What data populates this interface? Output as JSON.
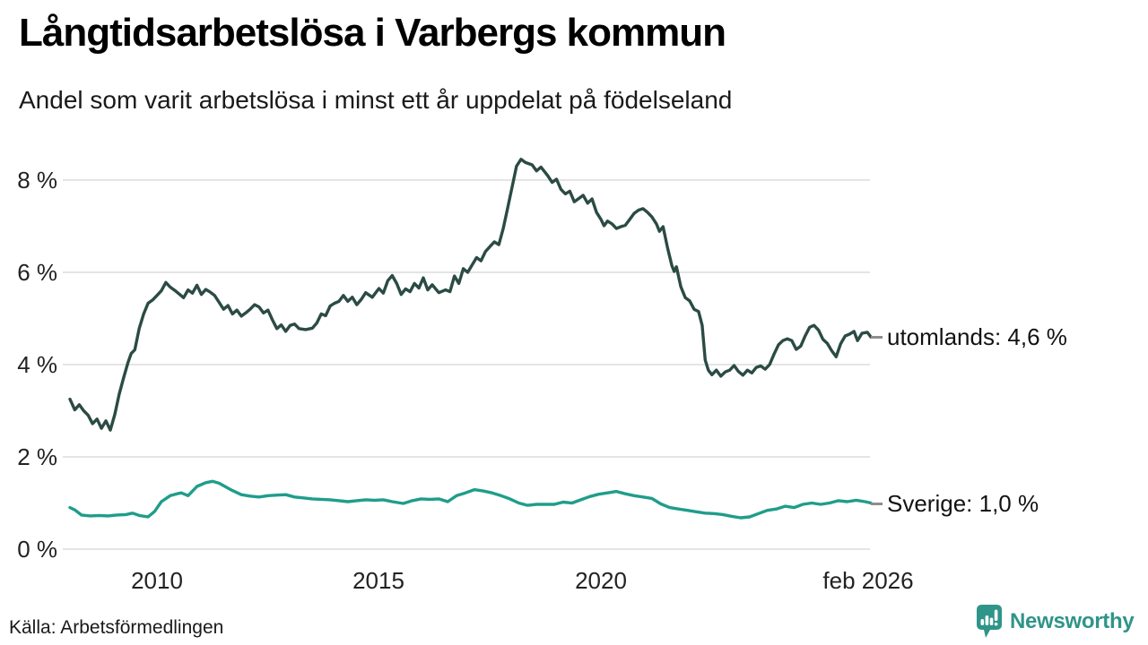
{
  "header": {
    "title": "Långtidsarbetslösa i Varbergs kommun",
    "subtitle": "Andel som varit arbetslösa i minst ett år uppdelat på födelseland"
  },
  "footer": {
    "source": "Källa: Arbetsförmedlingen",
    "brand": "Newsworthy"
  },
  "colors": {
    "series_utomlands": "#2b4b44",
    "series_sverige": "#1f9d8b",
    "grid": "#dcdcdc",
    "leader_dash": "#8d8d8d",
    "brand_teal": "#2f9489",
    "text": "#1a1a1a"
  },
  "chart_data": {
    "type": "line",
    "title": "Långtidsarbetslösa i Varbergs kommun",
    "subtitle": "Andel som varit arbetslösa i minst ett år uppdelat på födelseland",
    "source": "Källa: Arbetsförmedlingen",
    "grid": true,
    "legend_position": "end-of-line-labels",
    "xlim": [
      2008.0,
      2026.2
    ],
    "ylim": [
      0,
      8.7
    ],
    "y_ticks": [
      {
        "label": "8 %",
        "value": 8
      },
      {
        "label": "6 %",
        "value": 6
      },
      {
        "label": "4 %",
        "value": 4
      },
      {
        "label": "2 %",
        "value": 2
      },
      {
        "label": "0 %",
        "value": 0
      }
    ],
    "x_ticks": [
      {
        "label": "2010",
        "year": 2010
      },
      {
        "label": "2015",
        "year": 2015
      },
      {
        "label": "2020",
        "year": 2020
      },
      {
        "label": "feb 2026",
        "year": 2026.1
      }
    ],
    "series": [
      {
        "name": "utomlands",
        "end_label": "utomlands: 4,6 %",
        "end_value": "4,6 %",
        "color": "#2b4b44",
        "points": [
          [
            2008.04,
            3.25
          ],
          [
            2008.15,
            3.02
          ],
          [
            2008.25,
            3.13
          ],
          [
            2008.35,
            3.0
          ],
          [
            2008.45,
            2.9
          ],
          [
            2008.55,
            2.72
          ],
          [
            2008.65,
            2.82
          ],
          [
            2008.75,
            2.62
          ],
          [
            2008.85,
            2.78
          ],
          [
            2008.95,
            2.58
          ],
          [
            2009.05,
            2.92
          ],
          [
            2009.15,
            3.36
          ],
          [
            2009.25,
            3.72
          ],
          [
            2009.35,
            4.05
          ],
          [
            2009.42,
            4.24
          ],
          [
            2009.5,
            4.32
          ],
          [
            2009.6,
            4.78
          ],
          [
            2009.7,
            5.1
          ],
          [
            2009.8,
            5.33
          ],
          [
            2009.9,
            5.4
          ],
          [
            2010.0,
            5.5
          ],
          [
            2010.1,
            5.6
          ],
          [
            2010.2,
            5.78
          ],
          [
            2010.3,
            5.68
          ],
          [
            2010.4,
            5.61
          ],
          [
            2010.5,
            5.53
          ],
          [
            2010.6,
            5.45
          ],
          [
            2010.7,
            5.62
          ],
          [
            2010.8,
            5.55
          ],
          [
            2010.9,
            5.72
          ],
          [
            2011.0,
            5.52
          ],
          [
            2011.1,
            5.63
          ],
          [
            2011.2,
            5.57
          ],
          [
            2011.3,
            5.5
          ],
          [
            2011.4,
            5.35
          ],
          [
            2011.5,
            5.2
          ],
          [
            2011.6,
            5.28
          ],
          [
            2011.7,
            5.1
          ],
          [
            2011.8,
            5.18
          ],
          [
            2011.9,
            5.05
          ],
          [
            2012.0,
            5.12
          ],
          [
            2012.1,
            5.2
          ],
          [
            2012.2,
            5.3
          ],
          [
            2012.3,
            5.25
          ],
          [
            2012.4,
            5.12
          ],
          [
            2012.5,
            5.18
          ],
          [
            2012.6,
            4.97
          ],
          [
            2012.7,
            4.78
          ],
          [
            2012.8,
            4.86
          ],
          [
            2012.9,
            4.72
          ],
          [
            2013.0,
            4.85
          ],
          [
            2013.1,
            4.88
          ],
          [
            2013.2,
            4.78
          ],
          [
            2013.35,
            4.76
          ],
          [
            2013.5,
            4.79
          ],
          [
            2013.6,
            4.9
          ],
          [
            2013.7,
            5.1
          ],
          [
            2013.8,
            5.06
          ],
          [
            2013.9,
            5.27
          ],
          [
            2014.0,
            5.33
          ],
          [
            2014.1,
            5.37
          ],
          [
            2014.2,
            5.5
          ],
          [
            2014.3,
            5.37
          ],
          [
            2014.4,
            5.46
          ],
          [
            2014.5,
            5.3
          ],
          [
            2014.6,
            5.41
          ],
          [
            2014.7,
            5.56
          ],
          [
            2014.85,
            5.46
          ],
          [
            2015.0,
            5.65
          ],
          [
            2015.1,
            5.55
          ],
          [
            2015.2,
            5.82
          ],
          [
            2015.3,
            5.93
          ],
          [
            2015.4,
            5.76
          ],
          [
            2015.5,
            5.52
          ],
          [
            2015.6,
            5.64
          ],
          [
            2015.7,
            5.58
          ],
          [
            2015.8,
            5.76
          ],
          [
            2015.9,
            5.66
          ],
          [
            2016.0,
            5.88
          ],
          [
            2016.1,
            5.62
          ],
          [
            2016.2,
            5.73
          ],
          [
            2016.35,
            5.56
          ],
          [
            2016.5,
            5.62
          ],
          [
            2016.6,
            5.58
          ],
          [
            2016.7,
            5.92
          ],
          [
            2016.8,
            5.76
          ],
          [
            2016.9,
            6.08
          ],
          [
            2017.0,
            6.0
          ],
          [
            2017.1,
            6.16
          ],
          [
            2017.2,
            6.32
          ],
          [
            2017.3,
            6.25
          ],
          [
            2017.4,
            6.45
          ],
          [
            2017.5,
            6.56
          ],
          [
            2017.6,
            6.66
          ],
          [
            2017.7,
            6.6
          ],
          [
            2017.8,
            6.95
          ],
          [
            2017.9,
            7.4
          ],
          [
            2018.0,
            7.85
          ],
          [
            2018.1,
            8.3
          ],
          [
            2018.2,
            8.45
          ],
          [
            2018.3,
            8.38
          ],
          [
            2018.45,
            8.33
          ],
          [
            2018.55,
            8.2
          ],
          [
            2018.65,
            8.28
          ],
          [
            2018.8,
            8.1
          ],
          [
            2018.9,
            7.95
          ],
          [
            2019.0,
            8.02
          ],
          [
            2019.1,
            7.8
          ],
          [
            2019.2,
            7.7
          ],
          [
            2019.3,
            7.76
          ],
          [
            2019.4,
            7.53
          ],
          [
            2019.5,
            7.6
          ],
          [
            2019.6,
            7.67
          ],
          [
            2019.7,
            7.5
          ],
          [
            2019.8,
            7.59
          ],
          [
            2019.9,
            7.3
          ],
          [
            2020.0,
            7.15
          ],
          [
            2020.07,
            7.01
          ],
          [
            2020.15,
            7.11
          ],
          [
            2020.25,
            7.05
          ],
          [
            2020.35,
            6.95
          ],
          [
            2020.45,
            6.99
          ],
          [
            2020.55,
            7.02
          ],
          [
            2020.65,
            7.15
          ],
          [
            2020.75,
            7.28
          ],
          [
            2020.85,
            7.35
          ],
          [
            2020.95,
            7.38
          ],
          [
            2021.05,
            7.3
          ],
          [
            2021.15,
            7.2
          ],
          [
            2021.25,
            7.05
          ],
          [
            2021.32,
            6.89
          ],
          [
            2021.4,
            6.99
          ],
          [
            2021.5,
            6.53
          ],
          [
            2021.6,
            6.14
          ],
          [
            2021.65,
            6.02
          ],
          [
            2021.7,
            6.12
          ],
          [
            2021.8,
            5.69
          ],
          [
            2021.9,
            5.45
          ],
          [
            2022.0,
            5.38
          ],
          [
            2022.1,
            5.2
          ],
          [
            2022.2,
            5.15
          ],
          [
            2022.28,
            4.85
          ],
          [
            2022.35,
            4.1
          ],
          [
            2022.42,
            3.88
          ],
          [
            2022.5,
            3.78
          ],
          [
            2022.6,
            3.88
          ],
          [
            2022.7,
            3.75
          ],
          [
            2022.8,
            3.84
          ],
          [
            2022.9,
            3.88
          ],
          [
            2023.0,
            3.98
          ],
          [
            2023.1,
            3.85
          ],
          [
            2023.2,
            3.77
          ],
          [
            2023.3,
            3.88
          ],
          [
            2023.4,
            3.82
          ],
          [
            2023.5,
            3.94
          ],
          [
            2023.6,
            3.97
          ],
          [
            2023.7,
            3.9
          ],
          [
            2023.8,
            4.0
          ],
          [
            2023.9,
            4.23
          ],
          [
            2024.0,
            4.43
          ],
          [
            2024.1,
            4.52
          ],
          [
            2024.2,
            4.56
          ],
          [
            2024.3,
            4.52
          ],
          [
            2024.4,
            4.33
          ],
          [
            2024.5,
            4.4
          ],
          [
            2024.6,
            4.62
          ],
          [
            2024.7,
            4.81
          ],
          [
            2024.8,
            4.85
          ],
          [
            2024.9,
            4.75
          ],
          [
            2025.0,
            4.55
          ],
          [
            2025.1,
            4.46
          ],
          [
            2025.2,
            4.3
          ],
          [
            2025.3,
            4.17
          ],
          [
            2025.4,
            4.45
          ],
          [
            2025.5,
            4.62
          ],
          [
            2025.6,
            4.66
          ],
          [
            2025.7,
            4.72
          ],
          [
            2025.78,
            4.52
          ],
          [
            2025.88,
            4.68
          ],
          [
            2026.0,
            4.7
          ],
          [
            2026.08,
            4.6
          ]
        ]
      },
      {
        "name": "Sverige",
        "end_label": "Sverige: 1,0 %",
        "end_value": "1,0 %",
        "color": "#1f9d8b",
        "points": [
          [
            2008.04,
            0.9
          ],
          [
            2008.15,
            0.85
          ],
          [
            2008.3,
            0.74
          ],
          [
            2008.5,
            0.72
          ],
          [
            2008.7,
            0.73
          ],
          [
            2008.9,
            0.72
          ],
          [
            2009.1,
            0.74
          ],
          [
            2009.3,
            0.75
          ],
          [
            2009.45,
            0.78
          ],
          [
            2009.6,
            0.73
          ],
          [
            2009.8,
            0.7
          ],
          [
            2009.95,
            0.82
          ],
          [
            2010.1,
            1.03
          ],
          [
            2010.3,
            1.16
          ],
          [
            2010.45,
            1.2
          ],
          [
            2010.55,
            1.22
          ],
          [
            2010.7,
            1.16
          ],
          [
            2010.9,
            1.36
          ],
          [
            2011.1,
            1.44
          ],
          [
            2011.25,
            1.47
          ],
          [
            2011.4,
            1.43
          ],
          [
            2011.55,
            1.35
          ],
          [
            2011.7,
            1.27
          ],
          [
            2011.9,
            1.18
          ],
          [
            2012.1,
            1.15
          ],
          [
            2012.3,
            1.13
          ],
          [
            2012.5,
            1.16
          ],
          [
            2012.7,
            1.17
          ],
          [
            2012.9,
            1.18
          ],
          [
            2013.1,
            1.13
          ],
          [
            2013.3,
            1.11
          ],
          [
            2013.5,
            1.09
          ],
          [
            2013.7,
            1.08
          ],
          [
            2013.9,
            1.07
          ],
          [
            2014.1,
            1.05
          ],
          [
            2014.3,
            1.03
          ],
          [
            2014.5,
            1.05
          ],
          [
            2014.7,
            1.07
          ],
          [
            2014.9,
            1.06
          ],
          [
            2015.1,
            1.07
          ],
          [
            2015.3,
            1.03
          ],
          [
            2015.55,
            0.99
          ],
          [
            2015.75,
            1.05
          ],
          [
            2015.95,
            1.09
          ],
          [
            2016.15,
            1.08
          ],
          [
            2016.35,
            1.09
          ],
          [
            2016.55,
            1.03
          ],
          [
            2016.75,
            1.16
          ],
          [
            2016.95,
            1.22
          ],
          [
            2017.15,
            1.29
          ],
          [
            2017.35,
            1.26
          ],
          [
            2017.55,
            1.22
          ],
          [
            2017.75,
            1.16
          ],
          [
            2017.95,
            1.09
          ],
          [
            2018.15,
            1.0
          ],
          [
            2018.35,
            0.95
          ],
          [
            2018.55,
            0.97
          ],
          [
            2018.75,
            0.97
          ],
          [
            2018.95,
            0.97
          ],
          [
            2019.15,
            1.02
          ],
          [
            2019.35,
            1.0
          ],
          [
            2019.55,
            1.07
          ],
          [
            2019.75,
            1.14
          ],
          [
            2019.95,
            1.19
          ],
          [
            2020.15,
            1.22
          ],
          [
            2020.35,
            1.25
          ],
          [
            2020.55,
            1.2
          ],
          [
            2020.75,
            1.16
          ],
          [
            2020.95,
            1.13
          ],
          [
            2021.15,
            1.1
          ],
          [
            2021.35,
            0.98
          ],
          [
            2021.55,
            0.9
          ],
          [
            2021.75,
            0.87
          ],
          [
            2021.95,
            0.84
          ],
          [
            2022.15,
            0.81
          ],
          [
            2022.35,
            0.78
          ],
          [
            2022.55,
            0.77
          ],
          [
            2022.75,
            0.75
          ],
          [
            2022.95,
            0.71
          ],
          [
            2023.15,
            0.68
          ],
          [
            2023.35,
            0.7
          ],
          [
            2023.55,
            0.77
          ],
          [
            2023.75,
            0.84
          ],
          [
            2023.95,
            0.87
          ],
          [
            2024.15,
            0.93
          ],
          [
            2024.35,
            0.9
          ],
          [
            2024.55,
            0.97
          ],
          [
            2024.75,
            1.0
          ],
          [
            2024.95,
            0.97
          ],
          [
            2025.15,
            1.0
          ],
          [
            2025.35,
            1.05
          ],
          [
            2025.55,
            1.03
          ],
          [
            2025.75,
            1.06
          ],
          [
            2025.95,
            1.03
          ],
          [
            2026.08,
            1.0
          ]
        ]
      }
    ]
  }
}
